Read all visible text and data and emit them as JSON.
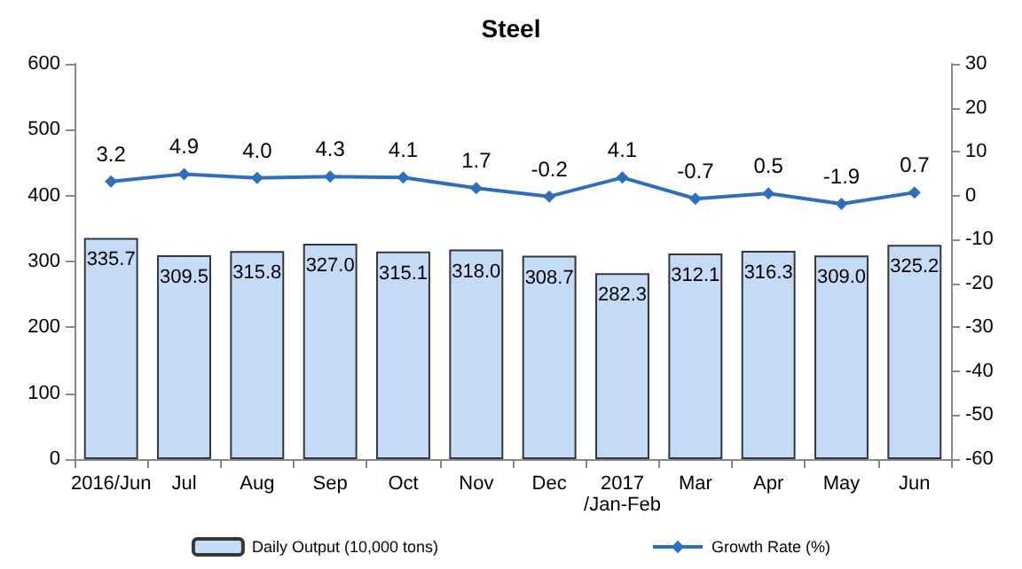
{
  "chart_data": {
    "type": "bar",
    "title": "Steel",
    "categories": [
      "2016/Jun",
      "Jul",
      "Aug",
      "Sep",
      "Oct",
      "Nov",
      "Dec",
      "2017\n/Jan-Feb",
      "Mar",
      "Apr",
      "May",
      "Jun"
    ],
    "series": [
      {
        "name": "Daily Output (10,000 tons)",
        "color": "#c5daf5",
        "values": [
          335.7,
          309.5,
          315.8,
          327.0,
          315.1,
          318.0,
          308.7,
          282.3,
          312.1,
          316.3,
          309.0,
          325.2
        ],
        "value_labels": [
          "335.7",
          "309.5",
          "315.8",
          "327.0",
          "315.1",
          "318.0",
          "308.7",
          "282.3",
          "312.1",
          "316.3",
          "309.0",
          "325.2"
        ]
      },
      {
        "name": "Growth Rate (%)",
        "type": "line",
        "axis": "y2",
        "color": "#2f6eba",
        "marker": "diamond",
        "values": [
          3.2,
          4.9,
          4.0,
          4.3,
          4.1,
          1.7,
          -0.2,
          4.1,
          -0.7,
          0.5,
          -1.9,
          0.7
        ],
        "value_labels": [
          "3.2",
          "4.9",
          "4.0",
          "4.3",
          "4.1",
          "1.7",
          "-0.2",
          "4.1",
          "-0.7",
          "0.5",
          "-1.9",
          "0.7"
        ]
      }
    ],
    "ylim": [
      0,
      600
    ],
    "yticks": [
      0,
      100,
      200,
      300,
      400,
      500,
      600
    ],
    "y2lim": [
      -60,
      30
    ],
    "y2ticks": [
      -60,
      -50,
      -40,
      -30,
      -20,
      -10,
      0,
      10,
      20,
      30
    ],
    "grid": false,
    "legend": "bottom"
  }
}
